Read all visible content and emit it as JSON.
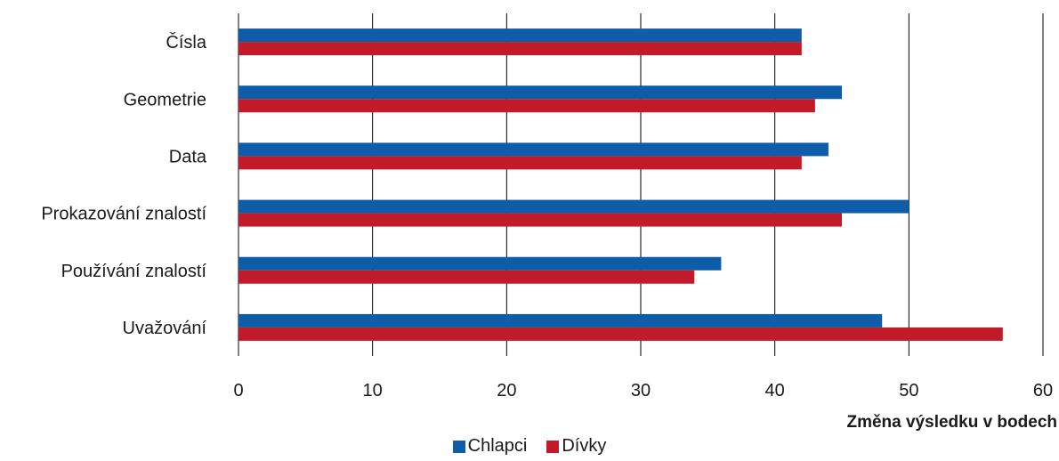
{
  "chart_data": {
    "type": "bar",
    "orientation": "horizontal",
    "categories": [
      "Čísla",
      "Geometrie",
      "Data",
      "Prokazování znalostí",
      "Používání znalostí",
      "Uvažování"
    ],
    "series": [
      {
        "name": "Chlapci",
        "color": "#0f5ca8",
        "values": [
          42,
          45,
          44,
          50,
          36,
          48
        ]
      },
      {
        "name": "Dívky",
        "color": "#c11b2a",
        "values": [
          42,
          43,
          42,
          45,
          34,
          57
        ]
      }
    ],
    "xlabel": "Změna výsledku v bodech",
    "ylabel": "",
    "xlim": [
      0,
      60
    ],
    "xticks": [
      "0",
      "10",
      "20",
      "30",
      "40",
      "50",
      "60"
    ],
    "grid": "vertical",
    "legend": "bottom-center"
  }
}
